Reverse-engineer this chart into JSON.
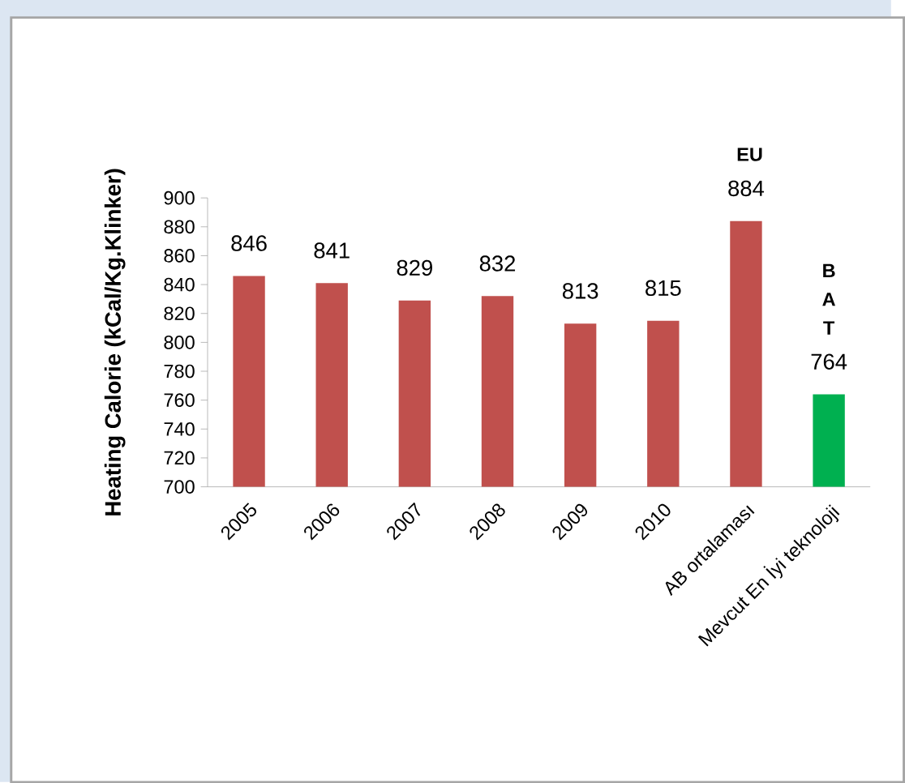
{
  "chart_data": {
    "type": "bar",
    "ylabel": "Heating Calorie (kCal/Kg.Klinker)",
    "categories": [
      "2005",
      "2006",
      "2007",
      "2008",
      "2009",
      "2010",
      "AB ortalaması",
      "Mevcut En İyi teknoloji"
    ],
    "values": [
      846,
      841,
      829,
      832,
      813,
      815,
      884,
      764
    ],
    "colors": [
      "#c0504d",
      "#c0504d",
      "#c0504d",
      "#c0504d",
      "#c0504d",
      "#c0504d",
      "#c0504d",
      "#00b050"
    ],
    "ylim": [
      700,
      900
    ],
    "yticks": [
      700,
      720,
      740,
      760,
      780,
      800,
      820,
      840,
      860,
      880,
      900
    ],
    "data_labels": true,
    "annotations": [
      "EU",
      "B A T"
    ]
  }
}
